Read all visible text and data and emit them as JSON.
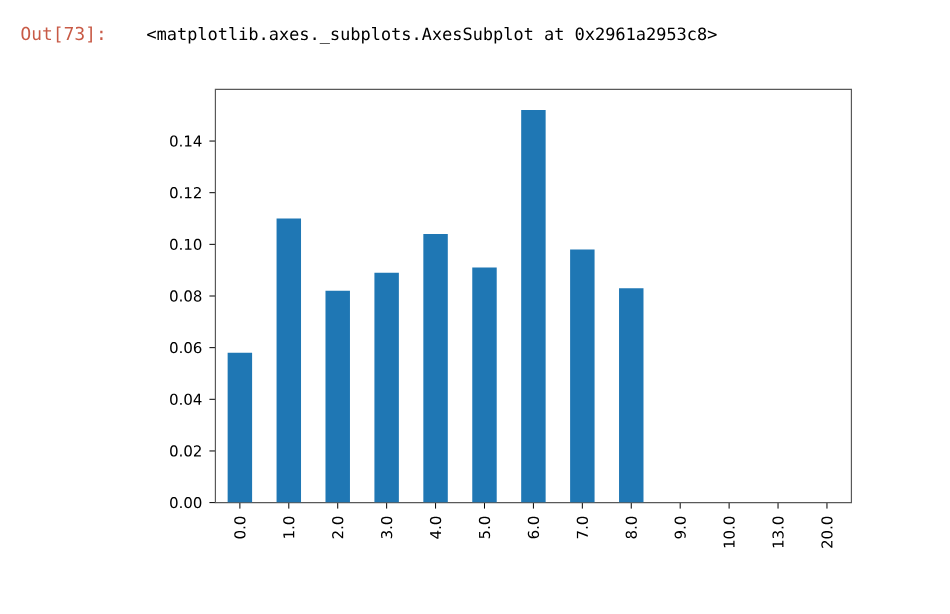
{
  "chart_data": {
    "type": "bar",
    "categories": [
      "0.0",
      "1.0",
      "2.0",
      "3.0",
      "4.0",
      "5.0",
      "6.0",
      "7.0",
      "8.0",
      "9.0",
      "10.0",
      "13.0",
      "20.0"
    ],
    "values": [
      0.058,
      0.11,
      0.082,
      0.089,
      0.104,
      0.091,
      0.152,
      0.098,
      0.083,
      0,
      0,
      0,
      0
    ],
    "color": "#1f77b4",
    "ylim": [
      0,
      0.16
    ],
    "yticks": [
      {
        "value": 0,
        "label": "0.00"
      },
      {
        "value": 0.02,
        "label": "0.02"
      },
      {
        "value": 0.04,
        "label": "0.04"
      },
      {
        "value": 0.06,
        "label": "0.06"
      },
      {
        "value": 0.08,
        "label": "0.08"
      },
      {
        "value": 0.1,
        "label": "0.10"
      },
      {
        "value": 0.12,
        "label": "0.12"
      },
      {
        "value": 0.14,
        "label": "0.14"
      }
    ],
    "annotations": [
      "Out[73]:",
      "<matplotlib.axes._subplots.AxesSubplot at 0x2961a2953c8>"
    ]
  }
}
